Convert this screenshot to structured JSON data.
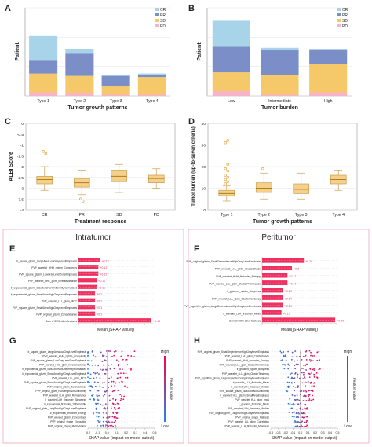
{
  "colors": {
    "cr": "#a8d4ea",
    "pr": "#7b8ec8",
    "sd": "#f5c96a",
    "pd": "#f7b3c8",
    "box": "#f5d08a",
    "boxEdge": "#caa050",
    "shap": "#f03060",
    "panelBorder": "#f2b8c6",
    "blue": "#1e88e5",
    "magenta": "#ff0050"
  },
  "chart_data": [
    {
      "panel": "A",
      "type": "bar",
      "stacked": true,
      "ylabel": "Patient",
      "xlabel": "Tumor growth patterns",
      "categories": [
        "Type 1",
        "Type 2",
        "Type 3",
        "Type 4"
      ],
      "series": [
        {
          "name": "PD",
          "values": [
            3,
            2,
            1,
            1
          ]
        },
        {
          "name": "SD",
          "values": [
            16,
            15,
            7,
            15
          ]
        },
        {
          "name": "PR",
          "values": [
            11,
            19,
            9,
            2
          ]
        },
        {
          "name": "CR",
          "values": [
            21,
            4,
            1,
            1
          ]
        }
      ],
      "legend": [
        "CR",
        "PR",
        "SD",
        "PD"
      ],
      "ylim": [
        0,
        75
      ]
    },
    {
      "panel": "B",
      "type": "bar",
      "stacked": true,
      "ylabel": "Patient",
      "xlabel": "Tumor burden",
      "categories": [
        "Low",
        "Intermediate",
        "High"
      ],
      "series": [
        {
          "name": "PD",
          "values": [
            4,
            1,
            3
          ]
        },
        {
          "name": "SD",
          "values": [
            16,
            17,
            24
          ]
        },
        {
          "name": "PR",
          "values": [
            22,
            21,
            12
          ]
        },
        {
          "name": "CR",
          "values": [
            22,
            2,
            1
          ]
        }
      ],
      "legend": [
        "CR",
        "PR",
        "SD",
        "PD"
      ],
      "ylim": [
        0,
        75
      ]
    },
    {
      "panel": "C",
      "type": "box",
      "ylabel": "ALBI Score",
      "xlabel": "Treatment response",
      "categories": [
        "CR",
        "PR",
        "SD",
        "PD"
      ],
      "ylim": [
        -4,
        0
      ],
      "yticks": [
        "-4",
        "-3.5",
        "-3",
        "-2.5",
        "-2",
        "-1.5",
        "-1",
        "-0.5",
        "0"
      ],
      "boxes": [
        {
          "min": -3.1,
          "q1": -2.8,
          "med": -2.6,
          "q3": -2.45,
          "max": -2.0,
          "outliers": [
            -1.3,
            -1.4
          ]
        },
        {
          "min": -3.3,
          "q1": -2.95,
          "med": -2.75,
          "q3": -2.55,
          "max": -2.2,
          "outliers": [
            -3.5,
            -3.6
          ]
        },
        {
          "min": -3.2,
          "q1": -2.7,
          "med": -2.45,
          "q3": -2.2,
          "max": -1.9,
          "outliers": []
        },
        {
          "min": -3.0,
          "q1": -2.75,
          "med": -2.55,
          "q3": -2.4,
          "max": -2.1,
          "outliers": []
        }
      ]
    },
    {
      "panel": "D",
      "type": "box",
      "ylabel": "Tumor burden (up-to-seven criteria)",
      "xlabel": "Tumor growth patterns",
      "categories": [
        "Type 1",
        "Type 2",
        "Type 3",
        "Type 4"
      ],
      "ylim": [
        0,
        40
      ],
      "yticks": [
        "0",
        "10",
        "20",
        "30",
        "40"
      ],
      "boxes": [
        {
          "min": 4,
          "q1": 6.5,
          "med": 7.5,
          "q3": 9,
          "max": 11,
          "outliers": [
            12,
            13,
            14,
            15,
            16,
            18,
            19,
            21,
            31,
            32
          ]
        },
        {
          "min": 5,
          "q1": 8,
          "med": 10,
          "q3": 12.5,
          "max": 17,
          "outliers": [
            19
          ]
        },
        {
          "min": 5,
          "q1": 7.5,
          "med": 9.5,
          "q3": 12,
          "max": 17,
          "outliers": []
        },
        {
          "min": 9,
          "q1": 12,
          "med": 14,
          "q3": 16,
          "max": 18,
          "outliers": []
        }
      ]
    },
    {
      "panel": "E",
      "type": "bar",
      "orientation": "horizontal",
      "xlabel": "Mean(|SHAP value|)",
      "categories": [
        "lr_square_glszm_LargeAreaLowGrayLevelEmphasis",
        "PVP_wavelet_HHH_ngtdm_Complexity",
        "PVP_square_glszm_LowGrayLevelZoneEmphasis",
        "PVP_wavelet_HHL_glcm_InverseVariance",
        "lr_exponential_glszm_SizeZoneNonUniformityNormalized",
        "lr_exponential_glszm_SmallAreaHighGrayLevelEmphasis",
        "PVP_wavelet_LLL_glcm_MCC",
        "PVP_square_glszm_SmallAreaHighGrayLevelEmphasis",
        "PVP_original_glszm_ZoneVariance",
        "Sum of 3990 other features"
      ],
      "values": [
        0.13,
        0.12,
        0.12,
        0.11,
        0.11,
        0.1,
        0.1,
        0.1,
        0.1,
        0.44
      ],
      "labels": [
        "+0.13",
        "+0.12",
        "+0.12",
        "+0.11",
        "+0.11",
        "+0.1",
        "+0.1",
        "+0.1",
        "+0.1",
        "+0.44"
      ]
    },
    {
      "panel": "F",
      "type": "bar",
      "orientation": "horizontal",
      "xlabel": "Mean(|SHAP value|)",
      "categories": [
        "PVP_original_glszm_SmallDependenceHighGrayLevelEmphasis",
        "PVP_wavelet_LHL_glrlm_ClusterShade",
        "PVP_wavelet_HHH_firstorder_Entropy",
        "PVP_wavelet_LLL_glcm_ClusterProminence",
        "lr_gradient_ngtdm_Busyness",
        "PVP_wavelet_LLL_glcm_ClusterTendency",
        "PVP_logarithm_glszm_LargeDependenceHighGrayLevelEmphasis",
        "lr_wavelet_LLH_firstorder_Mean",
        "Sum of 3990 other features"
      ],
      "values": [
        0.28,
        0.2,
        0.17,
        0.17,
        0.14,
        0.14,
        0.14,
        0.13,
        0.49
      ],
      "labels": [
        "+0.28",
        "+0.2",
        "+0.17",
        "+0.17",
        "+0.14",
        "+0.14",
        "+0.14",
        "+0.13",
        "+0.49"
      ]
    },
    {
      "panel": "G",
      "type": "scatter",
      "xlabel": "SHAP value (impact on model output)",
      "colorbar": {
        "high": "High",
        "low": "Low",
        "label": "Feature value"
      },
      "features": [
        "lr_square_glszm_LargeAreaLowGrayLevelEmphasis",
        "PVP_wavelet_HHH_ngtdm_Complexity",
        "PVP_square_glszm_LowGrayLevelZoneEmphasis",
        "PVP_wavelet_HHL_glcm_InverseVariance",
        "lr_exponential_glszm_SizeZoneNonUniformityNormalized",
        "lr_exponential_glszm_SmallAreaHighGrayLevelEmphasis",
        "PVP_wavelet_LLL_glcm_MCC",
        "PVP_square_glszm_SmallAreaHighGrayLevelEmphasis",
        "PVP_original_glszm_ZoneVariance",
        "PVP_original_gldm_RunLengthNonUniformity",
        "PVP_wavelet_LLH_glrlm_RunVariance",
        "lr_wavelet_LLH_firstorder_Skewness",
        "lr_exponential_firstorder_10Percentile",
        "PVP_original_gldm_LongRunHighGrayLevelEmphasis",
        "lr_exponential_firstorder_Energy",
        "PVP_wavelet_glszm_ZoneEntropy",
        "PVP_original_shape_Elongation",
        "PVP_original_shape_MeshVolume"
      ],
      "xticks": [
        "-0.2",
        "-0.1",
        "0.0",
        "0.1",
        "0.2",
        "0.3",
        "0.4",
        "0.5"
      ]
    },
    {
      "panel": "H",
      "type": "scatter",
      "xlabel": "SHAP value (impact on model output)",
      "colorbar": {
        "high": "High",
        "low": "Low",
        "label": "Feature value"
      },
      "features": [
        "PVP_original_glszm_SmallDependenceHighGrayLevelEmphasis",
        "PVP_wavelet_LHL_glrlm_ClusterShade",
        "PVP_wavelet_HHH_firstorder_Entropy",
        "PVP_wavelet_LLL_glcm_ClusterProminence",
        "lr_gradient_ngtdm_Busyness",
        "PVP_wavelet_LLL_glcm_ClusterTendency",
        "PVP_logarithm_glszm_LargeDependenceHighGrayLevelEmphasis",
        "lr_wavelet_LLH_firstorder_Mean",
        "lr_wavelet_LLH_firstorder_Median",
        "PVP_square_glszm_SizeZoneNonUniformity",
        "lr_wavelet_HLL_glszm_SmallAreaEmphasis",
        "PVP_wavelet_HLL_glcm_Imc1",
        "lr_gradient_firstorder_Mean",
        "PVP_wavelet_LLH_firstorder_Median",
        "PVP_original_glrlm_LongRunHighGrayLevelEmphasis",
        "PVP_original_shape_Flatness",
        "PVP_wavelet_LLL_glcm_Correlation",
        "PVP_wavelet_LLH_firstorder_Maximum"
      ],
      "xticks": [
        "-0.4",
        "-0.3",
        "-0.2",
        "-0.1",
        "0.0",
        "0.1",
        "0.2",
        "0.3",
        "0.4",
        "0.5"
      ]
    }
  ],
  "headers": {
    "intratumor": "Intratumor",
    "peritumor": "Peritumor"
  },
  "panel_letters": [
    "A",
    "B",
    "C",
    "D",
    "E",
    "F",
    "G",
    "H"
  ]
}
